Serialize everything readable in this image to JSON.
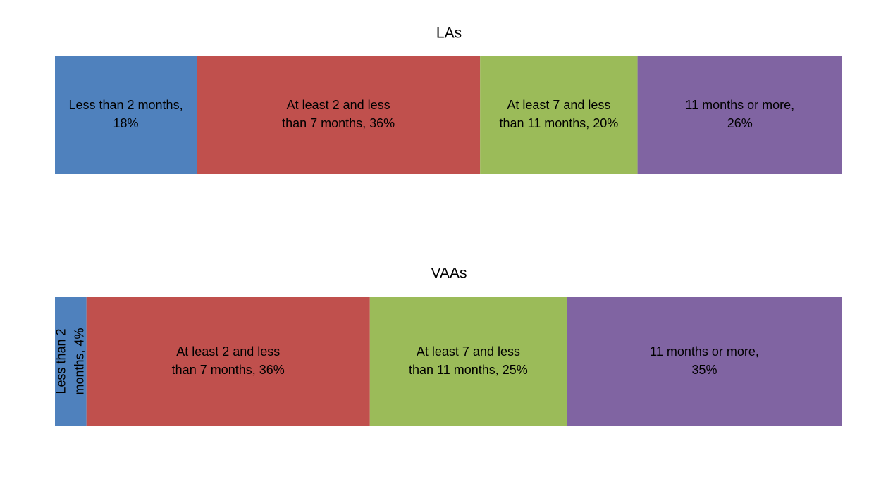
{
  "chart_data": [
    {
      "type": "bar",
      "orientation": "horizontal",
      "stacked": true,
      "title": "LAs",
      "xlim": [
        0,
        100
      ],
      "series": [
        {
          "name": "Less than 2 months",
          "color": "#4f81bd",
          "values": [
            18
          ],
          "value_labels": [
            "Less than 2 months, 18%"
          ]
        },
        {
          "name": "At least 2 and less than 7 months",
          "color": "#c0504d",
          "values": [
            36
          ],
          "value_labels": [
            "At least 2 and less than 7 months, 36%"
          ]
        },
        {
          "name": "At least 7 and less than 11 months",
          "color": "#9bbb59",
          "values": [
            20
          ],
          "value_labels": [
            "At least 7 and less than 11 months, 20%"
          ]
        },
        {
          "name": "11 months or more",
          "color": "#8064a2",
          "values": [
            26
          ],
          "value_labels": [
            "11 months or more, 26%"
          ]
        }
      ]
    },
    {
      "type": "bar",
      "orientation": "horizontal",
      "stacked": true,
      "title": "VAAs",
      "xlim": [
        0,
        100
      ],
      "series": [
        {
          "name": "Less than 2 months",
          "color": "#4f81bd",
          "values": [
            4
          ],
          "value_labels": [
            "Less than 2 months, 4%"
          ]
        },
        {
          "name": "At least 2 and less than 7 months",
          "color": "#c0504d",
          "values": [
            36
          ],
          "value_labels": [
            "At least 2 and less than 7 months, 36%"
          ]
        },
        {
          "name": "At least 7 and less than 11 months",
          "color": "#9bbb59",
          "values": [
            25
          ],
          "value_labels": [
            "At least 7 and less than 11 months, 25%"
          ]
        },
        {
          "name": "11 months or more",
          "color": "#8064a2",
          "values": [
            35
          ],
          "value_labels": [
            "11 months or more, 35%"
          ]
        }
      ]
    }
  ]
}
